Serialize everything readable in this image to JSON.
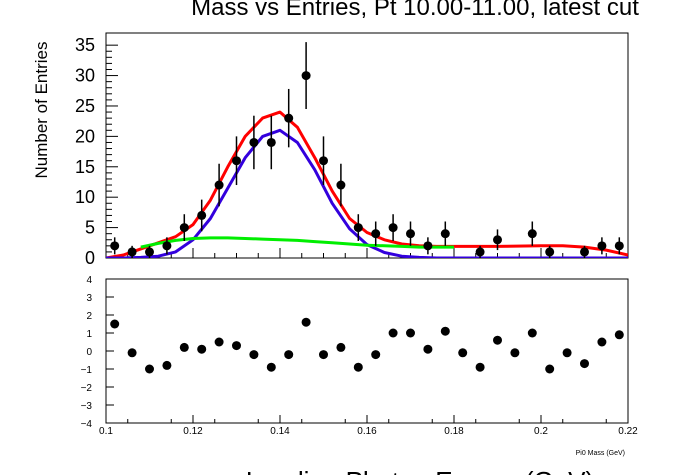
{
  "chart_data": [
    {
      "type": "scatter",
      "title": "Mass vs Entries, Pt 10.00-11.00, latest cut",
      "ylabel": "Number of Entries",
      "xlim": [
        0.1,
        0.22
      ],
      "ylim": [
        0,
        37
      ],
      "y_ticks": [
        "0",
        "5",
        "10",
        "15",
        "20",
        "25",
        "30",
        "35"
      ],
      "series": [
        {
          "kind": "points_with_errors",
          "color": "#000000",
          "x": [
            0.102,
            0.106,
            0.11,
            0.114,
            0.118,
            0.122,
            0.126,
            0.13,
            0.134,
            0.138,
            0.142,
            0.146,
            0.15,
            0.154,
            0.158,
            0.162,
            0.166,
            0.17,
            0.174,
            0.178,
            0.186,
            0.19,
            0.198,
            0.202,
            0.21,
            0.214,
            0.218
          ],
          "y": [
            2,
            1,
            1,
            2,
            5,
            7,
            12,
            16,
            19,
            19,
            23,
            30,
            16,
            12,
            5,
            4,
            5,
            4,
            2,
            4,
            1,
            3,
            4,
            1,
            1,
            2,
            2
          ],
          "err": [
            1.4,
            1.0,
            1.0,
            1.4,
            2.2,
            2.6,
            3.5,
            4.0,
            4.4,
            4.4,
            4.8,
            5.5,
            4.0,
            3.5,
            2.2,
            2.0,
            2.2,
            2.0,
            1.4,
            2.0,
            1.0,
            1.7,
            2.0,
            1.0,
            1.0,
            1.4,
            1.4
          ]
        },
        {
          "kind": "curve",
          "color": "#ff0000",
          "x": [
            0.1,
            0.104,
            0.108,
            0.112,
            0.116,
            0.12,
            0.124,
            0.128,
            0.132,
            0.136,
            0.14,
            0.144,
            0.148,
            0.152,
            0.156,
            0.16,
            0.164,
            0.168,
            0.172,
            0.176,
            0.18,
            0.19,
            0.2,
            0.205,
            0.21,
            0.215,
            0.22
          ],
          "y": [
            0,
            0.5,
            1.5,
            2.5,
            3.5,
            5.5,
            9.5,
            15.0,
            20.0,
            23.0,
            24.0,
            21.5,
            16.5,
            11.0,
            6.5,
            4.2,
            3.0,
            2.3,
            2.0,
            1.9,
            1.9,
            1.9,
            2.0,
            2.0,
            1.8,
            1.3,
            0.5
          ]
        },
        {
          "kind": "curve",
          "color": "#3300dd",
          "x": [
            0.1,
            0.104,
            0.108,
            0.112,
            0.116,
            0.12,
            0.124,
            0.128,
            0.132,
            0.136,
            0.14,
            0.144,
            0.148,
            0.152,
            0.156,
            0.16,
            0.164,
            0.168,
            0.172,
            0.176,
            0.18,
            0.22
          ],
          "y": [
            0,
            0,
            0.1,
            0.3,
            1.0,
            3.0,
            6.5,
            11.5,
            16.5,
            20.0,
            21.0,
            19.0,
            14.5,
            9.0,
            4.8,
            2.2,
            0.9,
            0.3,
            0.1,
            0,
            0,
            0
          ]
        },
        {
          "kind": "curve",
          "color": "#00ee00",
          "x": [
            0.108,
            0.112,
            0.116,
            0.12,
            0.124,
            0.128,
            0.132,
            0.136,
            0.14,
            0.144,
            0.148,
            0.152,
            0.156,
            0.16,
            0.164,
            0.168,
            0.172,
            0.176,
            0.18
          ],
          "y": [
            1.8,
            2.4,
            2.9,
            3.2,
            3.3,
            3.3,
            3.2,
            3.1,
            3.0,
            2.9,
            2.7,
            2.5,
            2.3,
            2.1,
            2.0,
            1.9,
            1.8,
            1.8,
            1.8
          ]
        }
      ]
    },
    {
      "type": "scatter",
      "xlim": [
        0.1,
        0.22
      ],
      "ylim": [
        -4,
        4
      ],
      "x_ticks": [
        "0.1",
        "0.12",
        "0.14",
        "0.16",
        "0.18",
        "0.2",
        "0.22"
      ],
      "y_ticks": [
        "−4",
        "−3",
        "−2",
        "−1",
        "0",
        "1",
        "2",
        "3",
        "4"
      ],
      "xlabel": "Pi0 Mass (GeV)",
      "series": [
        {
          "kind": "points",
          "color": "#000000",
          "x": [
            0.102,
            0.106,
            0.11,
            0.114,
            0.118,
            0.122,
            0.126,
            0.13,
            0.134,
            0.138,
            0.142,
            0.146,
            0.15,
            0.154,
            0.158,
            0.162,
            0.166,
            0.17,
            0.174,
            0.178,
            0.182,
            0.186,
            0.19,
            0.194,
            0.198,
            0.202,
            0.206,
            0.21,
            0.214,
            0.218
          ],
          "y": [
            1.5,
            -0.1,
            -1.0,
            -0.8,
            0.2,
            0.1,
            0.5,
            0.3,
            -0.2,
            -0.9,
            -0.2,
            1.6,
            -0.2,
            0.2,
            -0.9,
            -0.2,
            1.0,
            1.0,
            0.1,
            1.1,
            -0.1,
            -0.9,
            0.6,
            -0.1,
            1.0,
            -1.0,
            -0.1,
            -0.7,
            0.5,
            0.9
          ]
        }
      ]
    }
  ],
  "bottom_caption": "Leading Photon Energy (GeV)"
}
